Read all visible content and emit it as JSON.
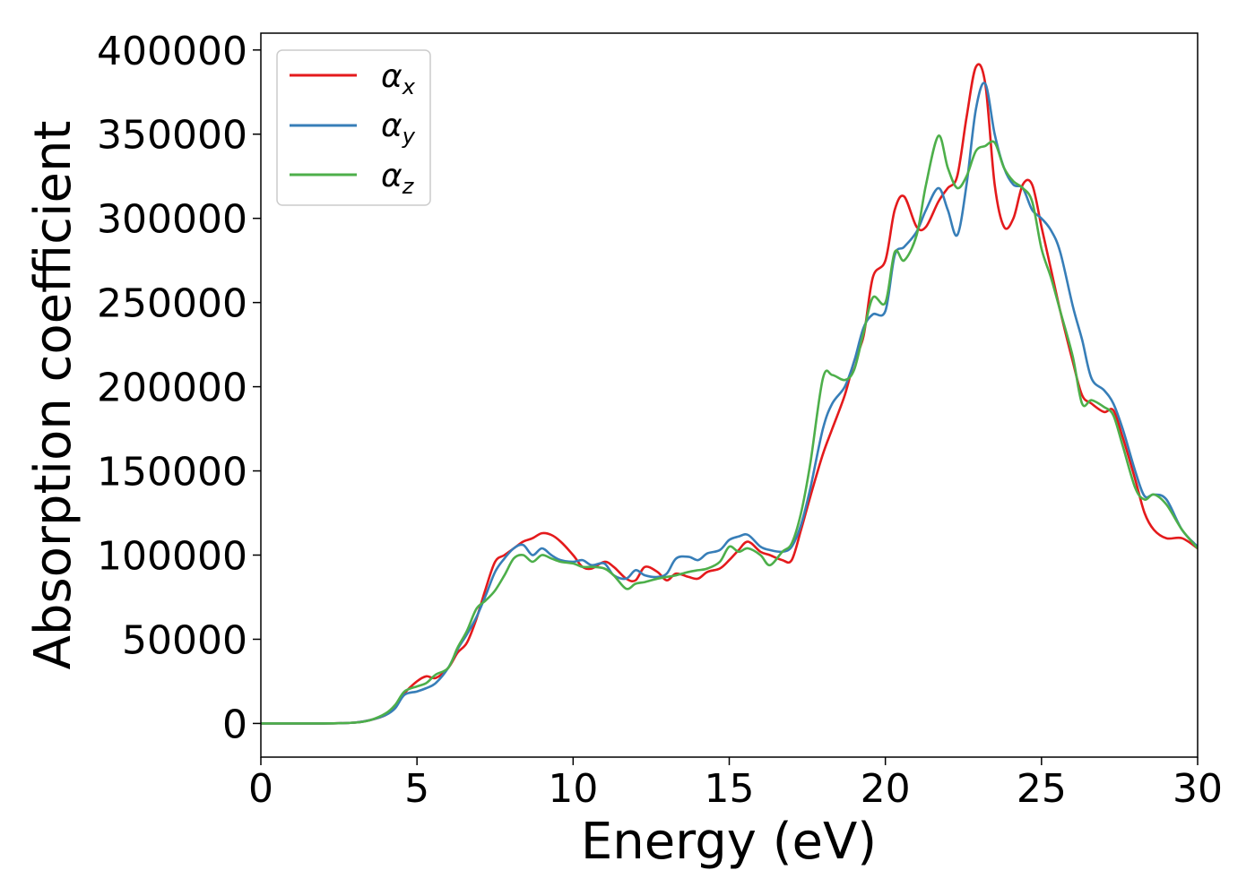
{
  "chart_data": {
    "type": "line",
    "title": "",
    "xlabel": "Energy (eV)",
    "ylabel": "Absorption coefficient",
    "xlim": [
      0,
      30
    ],
    "ylim": [
      -20000,
      410000
    ],
    "xticks": [
      0,
      5,
      10,
      15,
      20,
      25,
      30
    ],
    "yticks": [
      0,
      50000,
      100000,
      150000,
      200000,
      250000,
      300000,
      350000,
      400000
    ],
    "grid": false,
    "legend_position": "top-left",
    "series": [
      {
        "name": "α",
        "subscript": "x",
        "color": "#e41a1c",
        "x": [
          0,
          2,
          3,
          3.5,
          4,
          4.3,
          4.6,
          5.0,
          5.3,
          5.6,
          6.0,
          6.3,
          6.6,
          6.9,
          7.2,
          7.5,
          7.8,
          8.1,
          8.4,
          8.7,
          9.0,
          9.3,
          9.6,
          10.0,
          10.3,
          10.6,
          11.0,
          11.3,
          11.7,
          12.0,
          12.3,
          12.7,
          13.0,
          13.3,
          13.7,
          14.0,
          14.3,
          14.7,
          15.0,
          15.3,
          15.6,
          16.0,
          16.3,
          16.7,
          17.0,
          17.3,
          17.6,
          18.0,
          18.3,
          18.7,
          19.0,
          19.3,
          19.6,
          20.0,
          20.3,
          20.6,
          21.0,
          21.3,
          21.7,
          22.0,
          22.3,
          22.6,
          22.9,
          23.2,
          23.5,
          23.8,
          24.1,
          24.4,
          24.7,
          25.0,
          25.3,
          25.6,
          26.0,
          26.3,
          26.6,
          27.0,
          27.3,
          27.6,
          28.0,
          28.3,
          28.6,
          29.0,
          29.5,
          30.0
        ],
        "y": [
          0,
          0,
          500,
          2000,
          5000,
          10000,
          18000,
          25000,
          28000,
          27000,
          33000,
          42000,
          48000,
          62000,
          80000,
          96000,
          100000,
          104000,
          108000,
          110000,
          113000,
          112000,
          108000,
          100000,
          93000,
          92000,
          96000,
          93000,
          86000,
          85000,
          93000,
          90000,
          85000,
          89000,
          87000,
          86000,
          90000,
          92000,
          97000,
          103000,
          108000,
          102000,
          100000,
          97000,
          97000,
          115000,
          135000,
          160000,
          175000,
          195000,
          215000,
          230000,
          265000,
          275000,
          305000,
          313000,
          295000,
          295000,
          310000,
          318000,
          325000,
          360000,
          390000,
          380000,
          320000,
          295000,
          300000,
          320000,
          320000,
          295000,
          270000,
          245000,
          215000,
          195000,
          190000,
          185000,
          186000,
          170000,
          145000,
          125000,
          115000,
          110000,
          110000,
          104000
        ]
      },
      {
        "name": "α",
        "subscript": "y",
        "color": "#377eb8",
        "x": [
          0,
          2,
          3,
          3.5,
          4,
          4.3,
          4.6,
          5.0,
          5.3,
          5.6,
          6.0,
          6.3,
          6.6,
          6.9,
          7.2,
          7.5,
          7.8,
          8.1,
          8.4,
          8.7,
          9.0,
          9.3,
          9.6,
          10.0,
          10.3,
          10.6,
          11.0,
          11.3,
          11.7,
          12.0,
          12.3,
          12.7,
          13.0,
          13.3,
          13.7,
          14.0,
          14.3,
          14.7,
          15.0,
          15.3,
          15.6,
          16.0,
          16.3,
          16.7,
          17.0,
          17.3,
          17.6,
          18.0,
          18.3,
          18.7,
          19.0,
          19.3,
          19.6,
          20.0,
          20.3,
          20.6,
          21.0,
          21.3,
          21.7,
          22.0,
          22.3,
          22.6,
          22.9,
          23.2,
          23.5,
          23.8,
          24.1,
          24.4,
          24.7,
          25.0,
          25.3,
          25.6,
          26.0,
          26.3,
          26.6,
          27.0,
          27.3,
          27.6,
          28.0,
          28.3,
          28.6,
          29.0,
          29.5,
          30.0
        ],
        "y": [
          0,
          0,
          500,
          2000,
          5000,
          9000,
          17000,
          19000,
          21000,
          24000,
          33000,
          44000,
          53000,
          63000,
          76000,
          90000,
          98000,
          104000,
          106000,
          100000,
          104000,
          100000,
          97000,
          96000,
          97000,
          94000,
          95000,
          88000,
          86000,
          91000,
          88000,
          87000,
          89000,
          98000,
          99000,
          97000,
          101000,
          103000,
          109000,
          111000,
          112000,
          105000,
          103000,
          102000,
          105000,
          118000,
          140000,
          175000,
          190000,
          200000,
          215000,
          235000,
          243000,
          245000,
          278000,
          283000,
          292000,
          305000,
          318000,
          305000,
          290000,
          320000,
          365000,
          380000,
          350000,
          330000,
          320000,
          318000,
          305000,
          300000,
          293000,
          280000,
          248000,
          228000,
          205000,
          198000,
          190000,
          175000,
          150000,
          135000,
          136000,
          133000,
          115000,
          105000
        ]
      },
      {
        "name": "α",
        "subscript": "z",
        "color": "#4daf4a",
        "x": [
          0,
          2,
          3,
          3.5,
          4,
          4.3,
          4.6,
          5.0,
          5.3,
          5.6,
          6.0,
          6.3,
          6.6,
          6.9,
          7.2,
          7.5,
          7.8,
          8.1,
          8.4,
          8.7,
          9.0,
          9.3,
          9.6,
          10.0,
          10.3,
          10.6,
          11.0,
          11.3,
          11.7,
          12.0,
          12.3,
          12.7,
          13.0,
          13.3,
          13.7,
          14.0,
          14.3,
          14.7,
          15.0,
          15.3,
          15.6,
          16.0,
          16.3,
          16.7,
          17.0,
          17.3,
          17.6,
          18.0,
          18.3,
          18.7,
          19.0,
          19.3,
          19.6,
          20.0,
          20.3,
          20.6,
          21.0,
          21.3,
          21.7,
          22.0,
          22.3,
          22.6,
          22.9,
          23.2,
          23.5,
          23.8,
          24.1,
          24.4,
          24.7,
          25.0,
          25.3,
          25.6,
          26.0,
          26.3,
          26.6,
          27.0,
          27.3,
          27.6,
          28.0,
          28.3,
          28.6,
          29.0,
          29.5,
          30.0
        ],
        "y": [
          0,
          0,
          500,
          2000,
          6000,
          11000,
          19000,
          22000,
          24000,
          29000,
          33000,
          45000,
          55000,
          68000,
          73000,
          79000,
          88000,
          98000,
          100000,
          96000,
          100000,
          98000,
          96000,
          95000,
          93000,
          93000,
          92000,
          88000,
          80000,
          83000,
          84000,
          86000,
          87000,
          88000,
          90000,
          91000,
          92000,
          96000,
          105000,
          102000,
          104000,
          100000,
          94000,
          102000,
          107000,
          125000,
          155000,
          205000,
          207000,
          204000,
          210000,
          232000,
          253000,
          250000,
          280000,
          275000,
          290000,
          320000,
          349000,
          330000,
          318000,
          325000,
          340000,
          343000,
          345000,
          330000,
          322000,
          318000,
          310000,
          282000,
          265000,
          245000,
          218000,
          190000,
          192000,
          188000,
          183000,
          165000,
          140000,
          133000,
          136000,
          130000,
          115000,
          104000
        ]
      }
    ]
  }
}
